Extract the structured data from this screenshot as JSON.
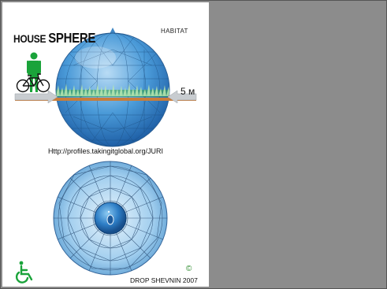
{
  "poster": {
    "title_part1": "HOUSE ",
    "title_part2": "SPHERE",
    "brand": "HABITAT",
    "scale_label": "5 м",
    "url": "Http://profiles.takingitglobal.org/JURI",
    "copyright_symbol": "©",
    "credit": "DROP SHEVNIN 2007"
  },
  "colors": {
    "sphere_blue": "#4a9ad8",
    "floor_orange": "#c97d3a",
    "figure_green": "#1aa33a",
    "background_gray": "#8c8c8c"
  },
  "icons": [
    "person-icon",
    "bicycle-icon",
    "arrow-left-icon",
    "arrow-right-icon",
    "wheelchair-icon"
  ]
}
